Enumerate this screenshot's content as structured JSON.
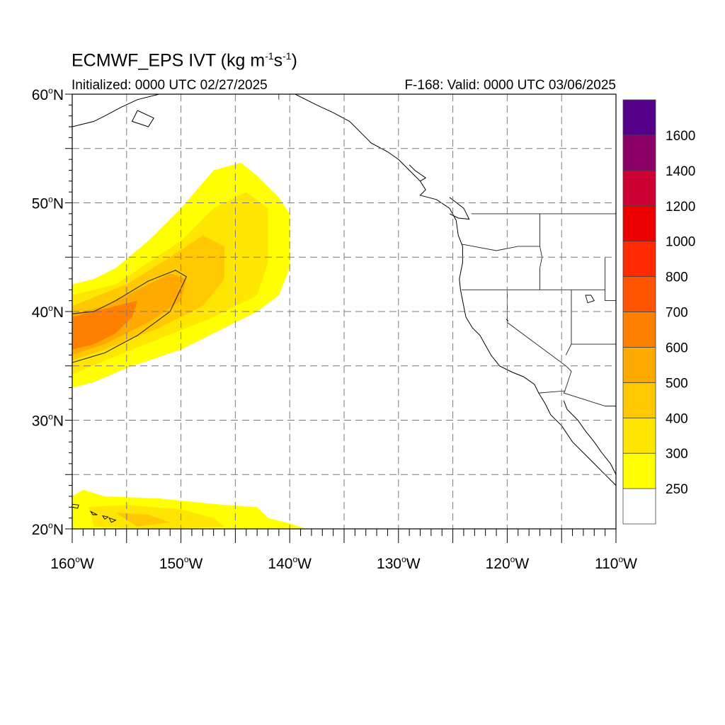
{
  "title": {
    "main": "ECMWF_EPS IVT (kg m",
    "unit_exp1": "-1",
    "unit_mid": "s",
    "unit_exp2": "-1",
    "unit_close": ")",
    "initialized": "Initialized: 0000 UTC 02/27/2025",
    "valid": "F-168: Valid: 0000 UTC 03/06/2025"
  },
  "map": {
    "lon_range": [
      -160,
      -110
    ],
    "lat_range": [
      20,
      60
    ],
    "lat_labels": [
      {
        "lat": 60,
        "text": "60"
      },
      {
        "lat": 50,
        "text": "50"
      },
      {
        "lat": 40,
        "text": "40"
      },
      {
        "lat": 30,
        "text": "30"
      },
      {
        "lat": 20,
        "text": "20"
      }
    ],
    "lat_suffix": "N",
    "lon_labels": [
      {
        "lon": -160,
        "text": "160"
      },
      {
        "lon": -150,
        "text": "150"
      },
      {
        "lon": -140,
        "text": "140"
      },
      {
        "lon": -130,
        "text": "130"
      },
      {
        "lon": -120,
        "text": "120"
      },
      {
        "lon": -110,
        "text": "110"
      }
    ],
    "lon_suffix": "W",
    "degree_symbol": "o",
    "grid_spacing_deg": 5
  },
  "colorbar": {
    "colors": [
      "#ffffff",
      "#ffff00",
      "#ffe600",
      "#ffc800",
      "#ffaa00",
      "#ff7f00",
      "#ff5500",
      "#ff2a00",
      "#ee0000",
      "#cc0033",
      "#8b0066",
      "#55008b"
    ],
    "labels": [
      "250",
      "300",
      "400",
      "500",
      "600",
      "700",
      "800",
      "1000",
      "1200",
      "1400",
      "1600"
    ]
  },
  "ivt_regions": [
    {
      "name": "outer",
      "color": "#ffff00",
      "polygon": [
        [
          -160,
          33.0
        ],
        [
          -158,
          33.5
        ],
        [
          -155,
          34.8
        ],
        [
          -150,
          36.5
        ],
        [
          -146,
          38.5
        ],
        [
          -143,
          40.0
        ],
        [
          -141,
          41.5
        ],
        [
          -140,
          44.0
        ],
        [
          -140,
          49.0
        ],
        [
          -141,
          50.5
        ],
        [
          -143,
          52.5
        ],
        [
          -144.5,
          53.7
        ],
        [
          -147,
          53.0
        ],
        [
          -150,
          49.5
        ],
        [
          -153,
          46.5
        ],
        [
          -156,
          44.0
        ],
        [
          -158,
          43.0
        ],
        [
          -160,
          42.5
        ]
      ]
    },
    {
      "name": "level300",
      "color": "#ffe600",
      "polygon": [
        [
          -160,
          34.2
        ],
        [
          -157,
          35.5
        ],
        [
          -152,
          37.5
        ],
        [
          -147,
          39.5
        ],
        [
          -143,
          41.5
        ],
        [
          -142,
          44.5
        ],
        [
          -142,
          49.5
        ],
        [
          -144,
          51.0
        ],
        [
          -147,
          49.5
        ],
        [
          -150,
          46.5
        ],
        [
          -153,
          44.5
        ],
        [
          -156,
          42.5
        ],
        [
          -160,
          41.5
        ]
      ]
    },
    {
      "name": "level400",
      "color": "#ffc800",
      "polygon": [
        [
          -160,
          35.5
        ],
        [
          -157,
          36.5
        ],
        [
          -152,
          38.5
        ],
        [
          -148,
          40.5
        ],
        [
          -146,
          43.0
        ],
        [
          -146,
          46.0
        ],
        [
          -148,
          47.0
        ],
        [
          -151,
          45.0
        ],
        [
          -155,
          42.5
        ],
        [
          -160,
          40.5
        ]
      ]
    },
    {
      "name": "level500",
      "color": "#ffaa00",
      "polygon": [
        [
          -160,
          36.0
        ],
        [
          -157,
          37.0
        ],
        [
          -153,
          39.0
        ],
        [
          -150,
          41.0
        ],
        [
          -149.5,
          43.0
        ],
        [
          -151,
          43.5
        ],
        [
          -154,
          42.0
        ],
        [
          -157,
          40.5
        ],
        [
          -160,
          39.8
        ]
      ]
    },
    {
      "name": "level600",
      "color": "#ff7f00",
      "polygon": [
        [
          -160,
          36.5
        ],
        [
          -158,
          37.0
        ],
        [
          -156,
          38.0
        ],
        [
          -154.5,
          39.5
        ],
        [
          -154,
          41.0
        ],
        [
          -156,
          40.5
        ],
        [
          -158,
          40.0
        ],
        [
          -160,
          39.5
        ]
      ]
    },
    {
      "name": "hawaii-outer",
      "color": "#ffff00",
      "polygon": [
        [
          -160,
          23.0
        ],
        [
          -159,
          23.6
        ],
        [
          -157,
          23.0
        ],
        [
          -152,
          22.8
        ],
        [
          -147,
          22.3
        ],
        [
          -143,
          22.0
        ],
        [
          -142,
          21.0
        ],
        [
          -140,
          20.5
        ],
        [
          -138.5,
          20.0
        ],
        [
          -160,
          20.0
        ]
      ]
    },
    {
      "name": "hawaii-inner",
      "color": "#ffe600",
      "polygon": [
        [
          -158.5,
          22.0
        ],
        [
          -155,
          22.2
        ],
        [
          -150,
          21.8
        ],
        [
          -147,
          21.0
        ],
        [
          -146,
          20.2
        ],
        [
          -152,
          20.0
        ],
        [
          -158,
          20.2
        ]
      ]
    },
    {
      "name": "hawaii-core",
      "color": "#ffc800",
      "polygon": [
        [
          -156,
          21.5
        ],
        [
          -153,
          21.3
        ],
        [
          -151,
          20.6
        ],
        [
          -154,
          20.2
        ]
      ]
    }
  ],
  "contour": {
    "polygon": [
      [
        -160,
        35.3
      ],
      [
        -157,
        36.2
      ],
      [
        -154,
        37.8
      ],
      [
        -151,
        40.0
      ],
      [
        -149.5,
        43.2
      ],
      [
        -150.5,
        43.8
      ],
      [
        -153,
        42.8
      ],
      [
        -156,
        41.0
      ],
      [
        -158,
        40.0
      ],
      [
        -160,
        39.8
      ]
    ]
  },
  "coastline": [
    [
      [
        -160,
        57.0
      ],
      [
        -158,
        57.5
      ],
      [
        -157,
        58.0
      ],
      [
        -155.5,
        58.8
      ],
      [
        -154,
        59.5
      ],
      [
        -152,
        60.0
      ]
    ],
    [
      [
        -154,
        58.5
      ],
      [
        -152.5,
        57.8
      ],
      [
        -153,
        57.0
      ],
      [
        -154.5,
        57.5
      ],
      [
        -154,
        58.5
      ]
    ],
    [
      [
        -139.5,
        60.0
      ],
      [
        -137.5,
        59.0
      ],
      [
        -136,
        58.3
      ],
      [
        -134.5,
        57.5
      ],
      [
        -133.5,
        56.5
      ],
      [
        -132.5,
        55.5
      ],
      [
        -131,
        54.7
      ],
      [
        -130,
        54.0
      ],
      [
        -129,
        53.0
      ],
      [
        -128,
        52.0
      ],
      [
        -127.5,
        51.2
      ],
      [
        -128,
        50.7
      ],
      [
        -126.5,
        50.3
      ],
      [
        -125.3,
        49.5
      ],
      [
        -124.7,
        48.4
      ],
      [
        -124.5,
        47.0
      ],
      [
        -124.1,
        46.0
      ],
      [
        -124.1,
        44.5
      ],
      [
        -124.4,
        43.0
      ],
      [
        -124.3,
        42.0
      ],
      [
        -124.1,
        41.0
      ],
      [
        -123.8,
        39.5
      ],
      [
        -123.2,
        38.5
      ],
      [
        -122.5,
        37.8
      ],
      [
        -122.0,
        36.9
      ],
      [
        -121.5,
        36.0
      ],
      [
        -120.7,
        35.0
      ],
      [
        -119.5,
        34.4
      ],
      [
        -118.5,
        34.0
      ],
      [
        -117.5,
        33.3
      ],
      [
        -117.1,
        32.5
      ],
      [
        -116.5,
        31.5
      ],
      [
        -116.0,
        30.5
      ],
      [
        -115.0,
        29.5
      ],
      [
        -114.0,
        28.0
      ],
      [
        -113.0,
        27.0
      ],
      [
        -112.0,
        26.0
      ],
      [
        -111.0,
        25.0
      ],
      [
        -110.0,
        24.0
      ]
    ],
    [
      [
        -114.8,
        31.8
      ],
      [
        -114.5,
        31.0
      ],
      [
        -113.5,
        30.0
      ],
      [
        -112.8,
        29.0
      ],
      [
        -112.0,
        28.0
      ],
      [
        -111.3,
        27.0
      ],
      [
        -110.5,
        26.0
      ],
      [
        -110.0,
        25.0
      ]
    ],
    [
      [
        -129,
        53.5
      ],
      [
        -128.5,
        53.0
      ],
      [
        -127.5,
        52.3
      ],
      [
        -128,
        52.0
      ]
    ],
    [
      [
        -125.3,
        50.5
      ],
      [
        -124.0,
        49.5
      ],
      [
        -123.5,
        48.5
      ],
      [
        -124.5,
        48.6
      ],
      [
        -125.3,
        49.0
      ]
    ],
    [
      [
        -111.0,
        60.0
      ],
      [
        -110.5,
        60.0
      ]
    ]
  ],
  "borders": [
    [
      [
        -141,
        60.0
      ],
      [
        -141,
        59.5
      ]
    ],
    [
      [
        -123.3,
        49.0
      ],
      [
        -110,
        49.0
      ]
    ],
    [
      [
        -124.2,
        46.2
      ],
      [
        -121,
        45.6
      ],
      [
        -119,
        46.0
      ],
      [
        -117,
        46.0
      ],
      [
        -116.8,
        45.0
      ],
      [
        -117,
        44.0
      ],
      [
        -117,
        42.0
      ]
    ],
    [
      [
        -124.2,
        42.0
      ],
      [
        -111,
        42.0
      ]
    ],
    [
      [
        -120,
        42.0
      ],
      [
        -120,
        39.0
      ],
      [
        -114.6,
        35.0
      ]
    ],
    [
      [
        -117,
        49.0
      ],
      [
        -117,
        46.0
      ]
    ],
    [
      [
        -114.1,
        42.0
      ],
      [
        -114.1,
        37.0
      ],
      [
        -114.6,
        36.0
      ]
    ],
    [
      [
        -114.1,
        37.0
      ],
      [
        -110,
        37.0
      ]
    ],
    [
      [
        -111,
        45.0
      ],
      [
        -111,
        41.0
      ],
      [
        -110,
        41.0
      ]
    ],
    [
      [
        -117.1,
        32.5
      ],
      [
        -114.7,
        32.7
      ],
      [
        -114.8,
        32.5
      ],
      [
        -111,
        31.3
      ],
      [
        -110,
        31.3
      ]
    ],
    [
      [
        -114.7,
        32.7
      ],
      [
        -114.1,
        34.5
      ],
      [
        -114.6,
        35.0
      ]
    ]
  ],
  "lakes": [
    [
      [
        -112.8,
        41.5
      ],
      [
        -112.3,
        41.5
      ],
      [
        -112.0,
        41.0
      ],
      [
        -112.6,
        40.8
      ]
    ],
    [
      [
        -120.1,
        39.3
      ],
      [
        -119.9,
        39.1
      ]
    ],
    [
      [
        -155.5,
        20.0
      ],
      [
        -154.8,
        19.5
      ],
      [
        -155.8,
        19.0
      ],
      [
        -156.0,
        19.8
      ]
    ],
    [
      [
        -160.3,
        22.3
      ],
      [
        -159.4,
        22.2
      ],
      [
        -159.5,
        21.9
      ],
      [
        -160.0,
        22.0
      ]
    ],
    [
      [
        -158.3,
        21.6
      ],
      [
        -157.7,
        21.3
      ],
      [
        -158.1,
        21.3
      ]
    ],
    [
      [
        -157.2,
        21.2
      ],
      [
        -156.7,
        21.1
      ],
      [
        -157.0,
        20.9
      ]
    ],
    [
      [
        -156.6,
        21.0
      ],
      [
        -156.0,
        20.8
      ],
      [
        -156.4,
        20.6
      ]
    ]
  ]
}
